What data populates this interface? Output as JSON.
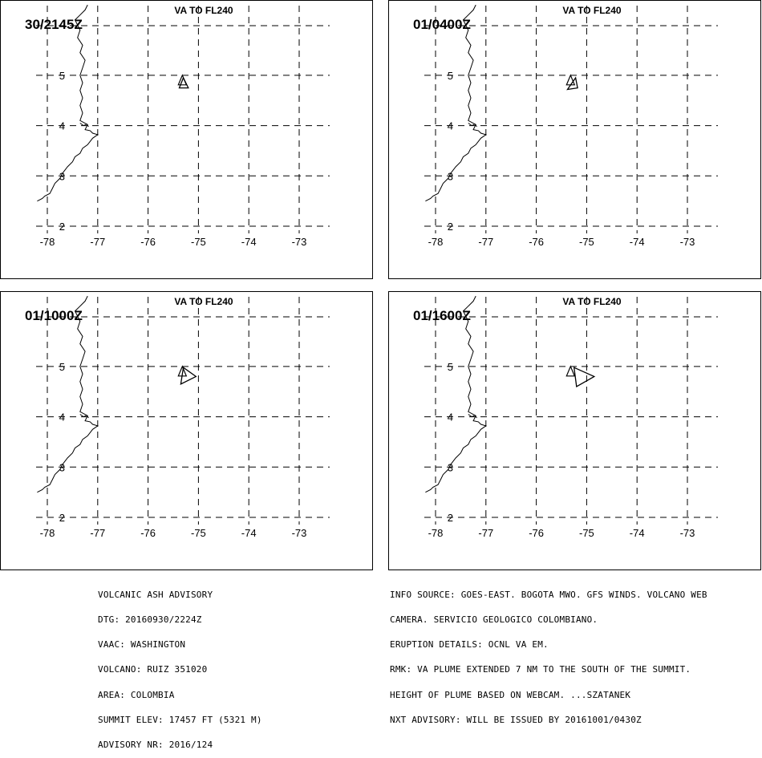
{
  "panels": [
    {
      "time": "30/2145Z",
      "level": "VA TO FL240",
      "plume": [
        [
          -75.3,
          4.95
        ],
        [
          -75.2,
          4.75
        ],
        [
          -75.38,
          4.75
        ]
      ]
    },
    {
      "time": "01/0400Z",
      "level": "VA TO FL240",
      "plume": [
        [
          -75.22,
          4.95
        ],
        [
          -75.18,
          4.75
        ],
        [
          -75.38,
          4.72
        ]
      ]
    },
    {
      "time": "01/1000Z",
      "level": "VA TO FL240",
      "plume": [
        [
          -75.3,
          4.98
        ],
        [
          -75.05,
          4.8
        ],
        [
          -75.35,
          4.65
        ]
      ]
    },
    {
      "time": "01/1600Z",
      "level": "VA TO FL240",
      "plume": [
        [
          -75.25,
          4.98
        ],
        [
          -74.85,
          4.8
        ],
        [
          -75.2,
          4.6
        ]
      ]
    }
  ],
  "map": {
    "lon_range": [
      -78.2,
      -72.2
    ],
    "lat_range": [
      1.7,
      6.4
    ],
    "lon_ticks": [
      -78,
      -77,
      -76,
      -75,
      -74,
      -73
    ],
    "lat_ticks": [
      2,
      3,
      4,
      5
    ],
    "lon_labels": [
      "-78",
      "-77",
      "-76",
      "-75",
      "-74",
      "-73"
    ],
    "lat_labels": [
      "2",
      "3",
      "4",
      "5"
    ],
    "grid": true
  },
  "advisory_left": [
    "VOLCANIC ASH ADVISORY",
    "DTG: 20160930/2224Z",
    "VAAC: WASHINGTON",
    "VOLCANO: RUIZ 351020",
    "AREA: COLOMBIA",
    "SUMMIT ELEV: 17457 FT (5321 M)",
    "ADVISORY NR: 2016/124"
  ],
  "advisory_right": [
    "INFO SOURCE: GOES-EAST. BOGOTA MWO. GFS WINDS. VOLCANO WEB",
    "CAMERA. SERVICIO GEOLOGICO COLOMBIANO.",
    "ERUPTION DETAILS: OCNL VA EM.",
    "RMK: VA PLUME EXTENDED 7 NM TO THE SOUTH OF THE SUMMIT.",
    "HEIGHT OF PLUME BASED ON WEBCAM. ...SZATANEK",
    "NXT ADVISORY: WILL BE ISSUED BY 20161001/0430Z"
  ]
}
